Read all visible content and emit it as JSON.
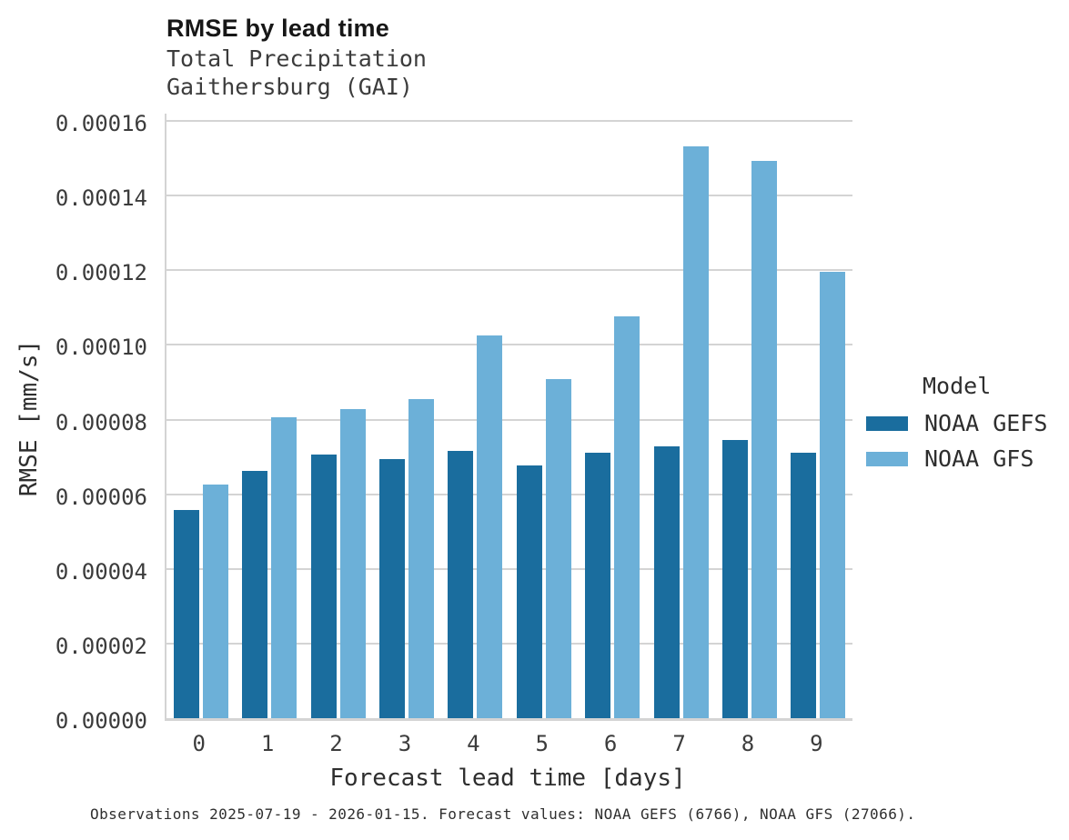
{
  "chart_data": {
    "type": "bar",
    "title": "RMSE by lead time",
    "subtitle": [
      "Total Precipitation",
      "Gaithersburg (GAI)"
    ],
    "xlabel": "Forecast lead time [days]",
    "ylabel": "RMSE [mm/s]",
    "categories": [
      "0",
      "1",
      "2",
      "3",
      "4",
      "5",
      "6",
      "7",
      "8",
      "9"
    ],
    "series": [
      {
        "name": "NOAA GEFS",
        "color": "#1a6d9e",
        "values": [
          5.57e-05,
          6.63e-05,
          7.06e-05,
          6.93e-05,
          7.17e-05,
          6.77e-05,
          7.1e-05,
          7.27e-05,
          7.46e-05,
          7.11e-05
        ]
      },
      {
        "name": "NOAA GFS",
        "color": "#6cb0d8",
        "values": [
          6.27e-05,
          8.07e-05,
          8.29e-05,
          8.54e-05,
          0.0001026,
          9.09e-05,
          0.0001077,
          0.0001532,
          0.0001494,
          0.0001195
        ]
      }
    ],
    "ylim": [
      0,
      0.00016
    ],
    "yticks": [
      {
        "value": 0.0,
        "label": "0.00000"
      },
      {
        "value": 2e-05,
        "label": "0.00002"
      },
      {
        "value": 4e-05,
        "label": "0.00004"
      },
      {
        "value": 6e-05,
        "label": "0.00006"
      },
      {
        "value": 8e-05,
        "label": "0.00008"
      },
      {
        "value": 0.0001,
        "label": "0.00010"
      },
      {
        "value": 0.00012,
        "label": "0.00012"
      },
      {
        "value": 0.00014,
        "label": "0.00014"
      },
      {
        "value": 0.00016,
        "label": "0.00016"
      }
    ],
    "grid": true,
    "legend_position": "right",
    "legend_title": "Model",
    "caption": "Observations 2025-07-19 - 2026-01-15. Forecast values: NOAA GEFS (6766), NOAA GFS (27066).",
    "colors": {
      "gridline": "#d4d4d4",
      "axis_line": "#d4d4d4",
      "title_text": "#171717",
      "label_text": "#3c3c3c"
    }
  }
}
